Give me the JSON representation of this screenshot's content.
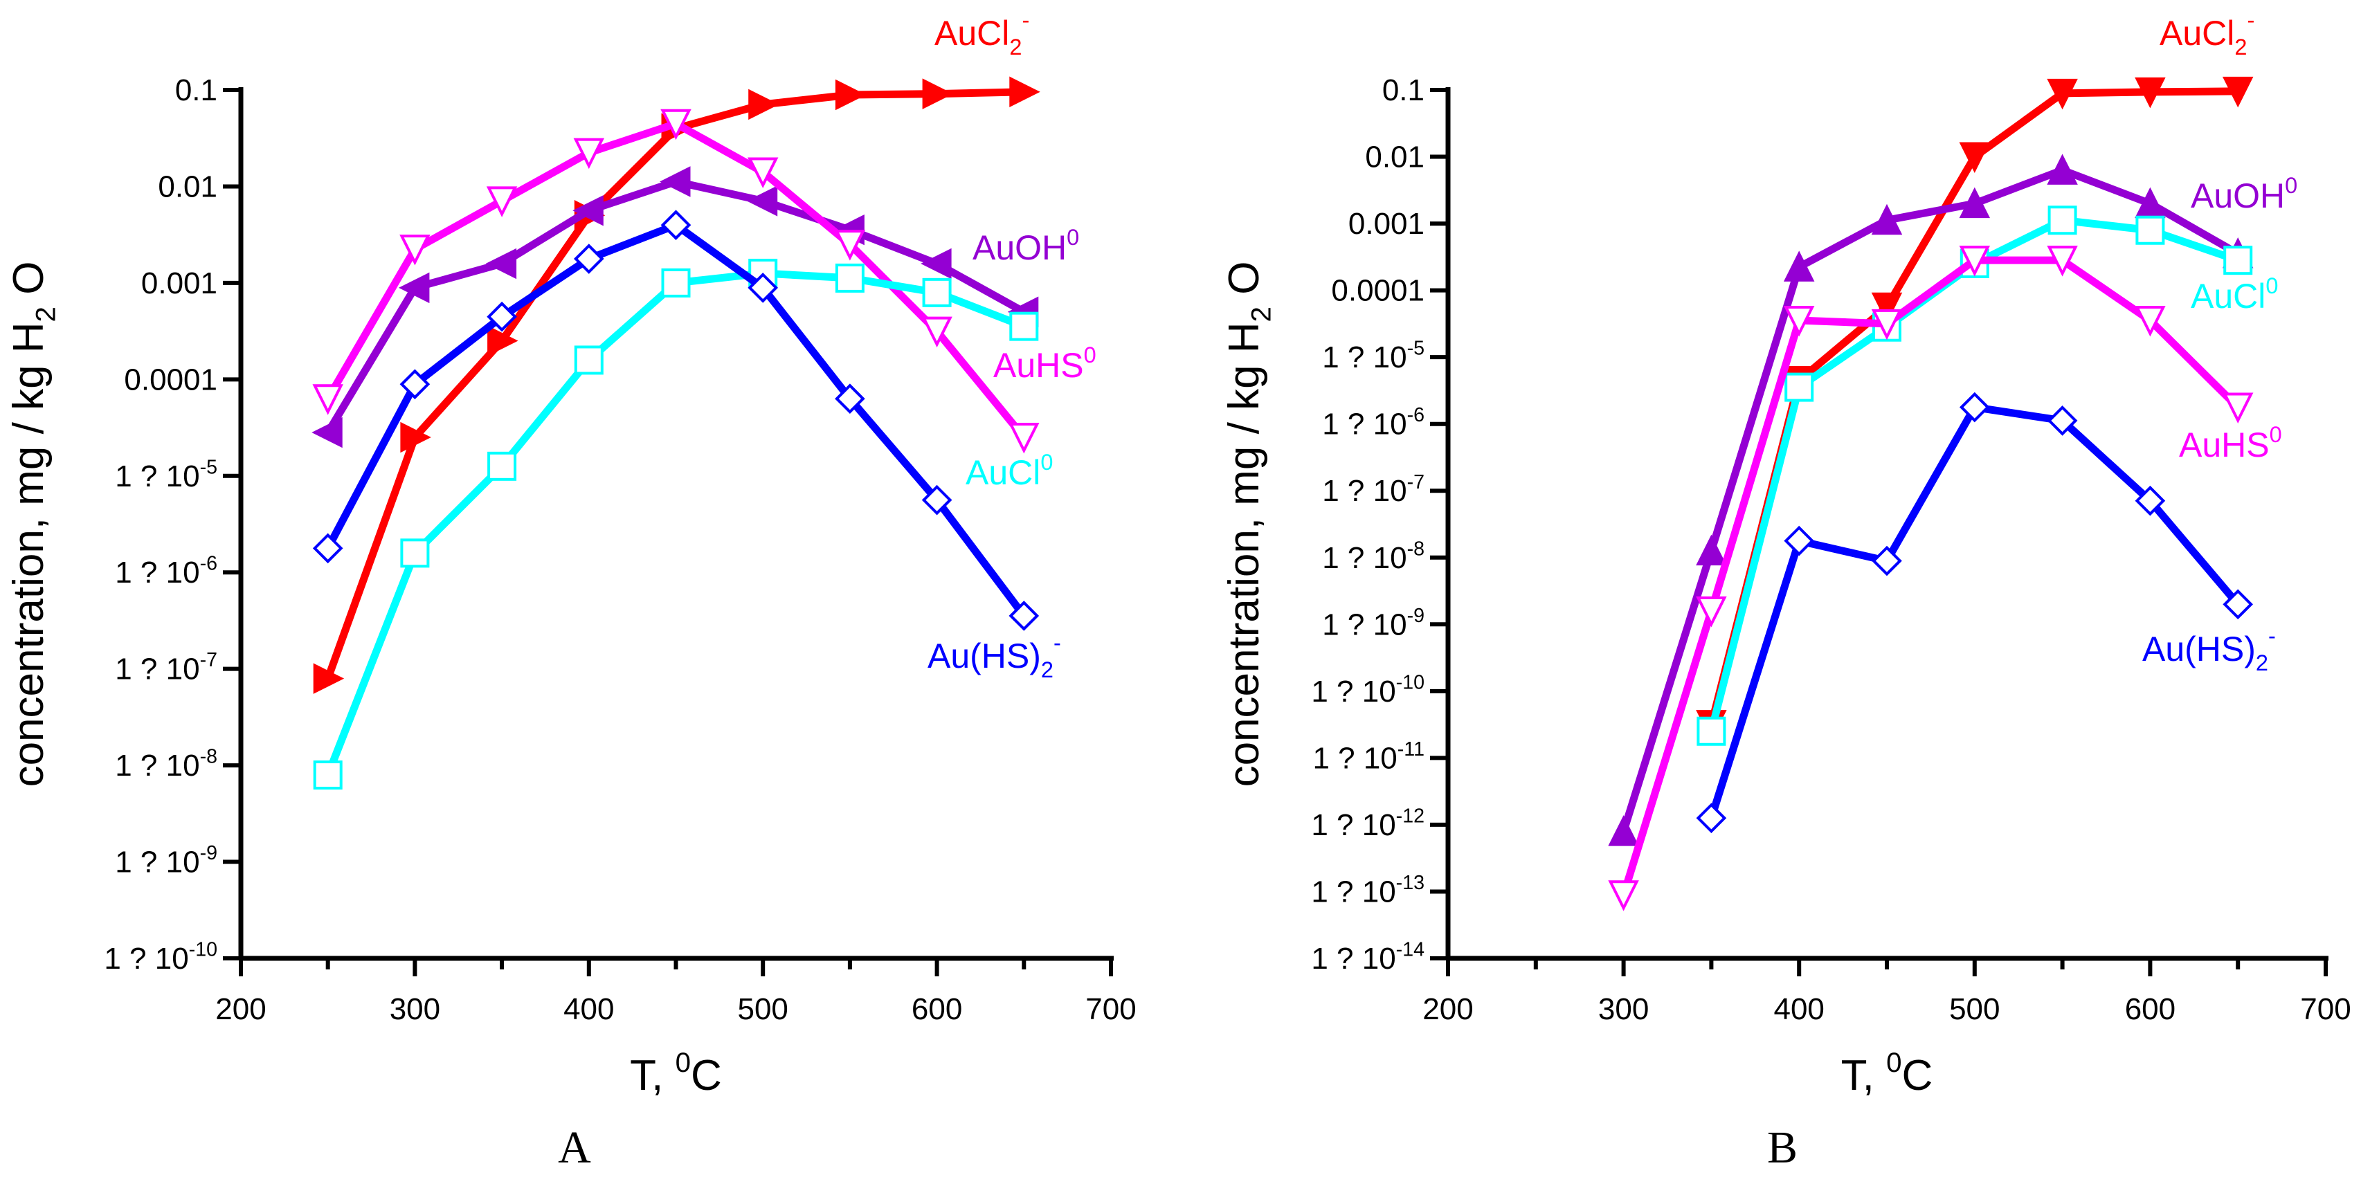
{
  "chart_data": [
    {
      "type": "line",
      "panel_label": "A",
      "xlabel": {
        "text": "T, ",
        "sup": "0",
        "tail": "C"
      },
      "ylabel": {
        "text": "concentration, mg / kg H",
        "sub": "2",
        "tail": "O"
      },
      "x_ticks": [
        "200",
        "300",
        "400",
        "500",
        "600",
        "700"
      ],
      "xlim": [
        200,
        700
      ],
      "y_scale": "log",
      "ylim_exp": [
        -10,
        -1
      ],
      "y_ticks": [
        {
          "exp": -1,
          "base": "0.1",
          "sup": ""
        },
        {
          "exp": -2,
          "base": "0.01",
          "sup": ""
        },
        {
          "exp": -3,
          "base": "0.001",
          "sup": ""
        },
        {
          "exp": -4,
          "base": "0.0001",
          "sup": ""
        },
        {
          "exp": -5,
          "base": "1 ? 10",
          "sup": "-5"
        },
        {
          "exp": -6,
          "base": "1 ? 10",
          "sup": "-6"
        },
        {
          "exp": -7,
          "base": "1 ? 10",
          "sup": "-7"
        },
        {
          "exp": -8,
          "base": "1 ? 10",
          "sup": "-8"
        },
        {
          "exp": -9,
          "base": "1 ? 10",
          "sup": "-9"
        },
        {
          "exp": -10,
          "base": "1 ? 10",
          "sup": "-10"
        }
      ],
      "series": [
        {
          "name": "AuCl2-",
          "label_base": "AuCl",
          "label_sub": "2",
          "label_sup": "-",
          "color": "#ff0000",
          "marker": "tri-right-filled",
          "x": [
            250,
            300,
            350,
            400,
            450,
            500,
            550,
            600,
            650
          ],
          "y_log10": [
            -7.1,
            -4.6,
            -3.6,
            -2.3,
            -1.4,
            -1.15,
            -1.05,
            -1.04,
            -1.02
          ]
        },
        {
          "name": "AuOH0",
          "label_base": "AuOH",
          "label_sub": "",
          "label_sup": "0",
          "color": "#9400d3",
          "marker": "tri-left-filled",
          "x": [
            250,
            300,
            350,
            400,
            450,
            500,
            550,
            600,
            650
          ],
          "y_log10": [
            -4.55,
            -3.05,
            -2.8,
            -2.25,
            -1.95,
            -2.15,
            -2.45,
            -2.8,
            -3.3
          ]
        },
        {
          "name": "AuHS0",
          "label_base": "AuHS",
          "label_sub": "",
          "label_sup": "0",
          "color": "#ff00ff",
          "marker": "tri-down-open",
          "x": [
            250,
            300,
            350,
            400,
            450,
            500,
            550,
            600,
            650
          ],
          "y_log10": [
            -4.2,
            -2.65,
            -2.15,
            -1.65,
            -1.35,
            -1.85,
            -2.6,
            -3.5,
            -4.6
          ]
        },
        {
          "name": "AuCl0",
          "label_base": "AuCl",
          "label_sub": "",
          "label_sup": "0",
          "color": "#00ffff",
          "marker": "square-open",
          "x": [
            250,
            300,
            350,
            400,
            450,
            500,
            550,
            600,
            650
          ],
          "y_log10": [
            -8.1,
            -5.8,
            -4.9,
            -3.8,
            -3.0,
            -2.9,
            -2.95,
            -3.1,
            -3.45
          ]
        },
        {
          "name": "Au(HS)2-",
          "label_base": "Au(HS)",
          "label_sub": "2",
          "label_sup": "-",
          "color": "#0000ff",
          "marker": "diamond-open",
          "x": [
            250,
            300,
            350,
            400,
            450,
            500,
            550,
            600,
            650
          ],
          "y_log10": [
            -5.75,
            -4.05,
            -3.35,
            -2.75,
            -2.4,
            -3.05,
            -4.2,
            -5.25,
            -6.45
          ]
        }
      ]
    },
    {
      "type": "line",
      "panel_label": "B",
      "xlabel": {
        "text": "T, ",
        "sup": "0",
        "tail": "C"
      },
      "ylabel": {
        "text": "concentration, mg / kg H",
        "sub": "2",
        "tail": "O"
      },
      "x_ticks": [
        "200",
        "300",
        "400",
        "500",
        "600",
        "700"
      ],
      "xlim": [
        200,
        700
      ],
      "y_scale": "log",
      "ylim_exp": [
        -14,
        -1
      ],
      "y_ticks": [
        {
          "exp": -1,
          "base": "0.1",
          "sup": ""
        },
        {
          "exp": -2,
          "base": "0.01",
          "sup": ""
        },
        {
          "exp": -3,
          "base": "0.001",
          "sup": ""
        },
        {
          "exp": -4,
          "base": "0.0001",
          "sup": ""
        },
        {
          "exp": -5,
          "base": "1 ? 10",
          "sup": "-5"
        },
        {
          "exp": -6,
          "base": "1 ? 10",
          "sup": "-6"
        },
        {
          "exp": -7,
          "base": "1 ? 10",
          "sup": "-7"
        },
        {
          "exp": -8,
          "base": "1 ? 10",
          "sup": "-8"
        },
        {
          "exp": -9,
          "base": "1 ? 10",
          "sup": "-9"
        },
        {
          "exp": -10,
          "base": "1 ? 10",
          "sup": "-10"
        },
        {
          "exp": -11,
          "base": "1 ? 10",
          "sup": "-11"
        },
        {
          "exp": -12,
          "base": "1 ? 10",
          "sup": "-12"
        },
        {
          "exp": -13,
          "base": "1 ? 10",
          "sup": "-13"
        },
        {
          "exp": -14,
          "base": "1 ? 10",
          "sup": "-14"
        }
      ],
      "series": [
        {
          "name": "AuCl2-",
          "label_base": "AuCl",
          "label_sub": "2",
          "label_sup": "-",
          "color": "#ff0000",
          "marker": "tri-down-filled",
          "x": [
            350,
            400,
            450,
            500,
            550,
            600,
            650
          ],
          "y_log10": [
            -10.5,
            -5.35,
            -4.25,
            -2.0,
            -1.05,
            -1.03,
            -1.02
          ]
        },
        {
          "name": "AuOH0",
          "label_base": "AuOH",
          "label_sub": "",
          "label_sup": "0",
          "color": "#9400d3",
          "marker": "tri-up-filled",
          "x": [
            300,
            350,
            400,
            450,
            500,
            550,
            600,
            650
          ],
          "y_log10": [
            -12.1,
            -7.9,
            -3.65,
            -2.95,
            -2.7,
            -2.2,
            -2.7,
            -3.45
          ]
        },
        {
          "name": "AuCl0",
          "label_base": "AuCl",
          "label_sub": "",
          "label_sup": "0",
          "color": "#00ffff",
          "marker": "square-open",
          "x": [
            350,
            400,
            450,
            500,
            550,
            600,
            650
          ],
          "y_log10": [
            -10.6,
            -5.45,
            -4.55,
            -3.6,
            -2.95,
            -3.1,
            -3.55
          ]
        },
        {
          "name": "AuHS0",
          "label_base": "AuHS",
          "label_sub": "",
          "label_sup": "0",
          "color": "#ff00ff",
          "marker": "tri-down-open",
          "x": [
            300,
            350,
            400,
            450,
            500,
            550,
            600,
            650
          ],
          "y_log10": [
            -13.05,
            -8.8,
            -4.45,
            -4.5,
            -3.55,
            -3.55,
            -4.45,
            -5.75
          ]
        },
        {
          "name": "Au(HS)2-",
          "label_base": "Au(HS)",
          "label_sub": "2",
          "label_sup": "-",
          "color": "#0000ff",
          "marker": "diamond-open",
          "x": [
            350,
            400,
            450,
            500,
            550,
            600,
            650
          ],
          "y_log10": [
            -11.9,
            -7.75,
            -8.05,
            -5.75,
            -5.95,
            -7.15,
            -8.7
          ]
        }
      ]
    }
  ]
}
